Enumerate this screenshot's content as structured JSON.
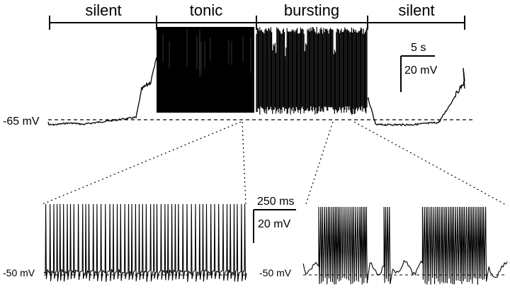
{
  "phases": [
    {
      "label": "silent"
    },
    {
      "label": "tonic"
    },
    {
      "label": "bursting"
    },
    {
      "label": "silent"
    }
  ],
  "scale_main": {
    "time": "5 s",
    "voltage": "20 mV"
  },
  "scale_inset": {
    "time": "250 ms",
    "voltage": "20 mV"
  },
  "baseline_main": "-65 mV",
  "baseline_left_inset": "-50 mV",
  "baseline_right_inset": "-50 mV",
  "colors": {
    "trace": "#000000",
    "background": "#ffffff"
  }
}
